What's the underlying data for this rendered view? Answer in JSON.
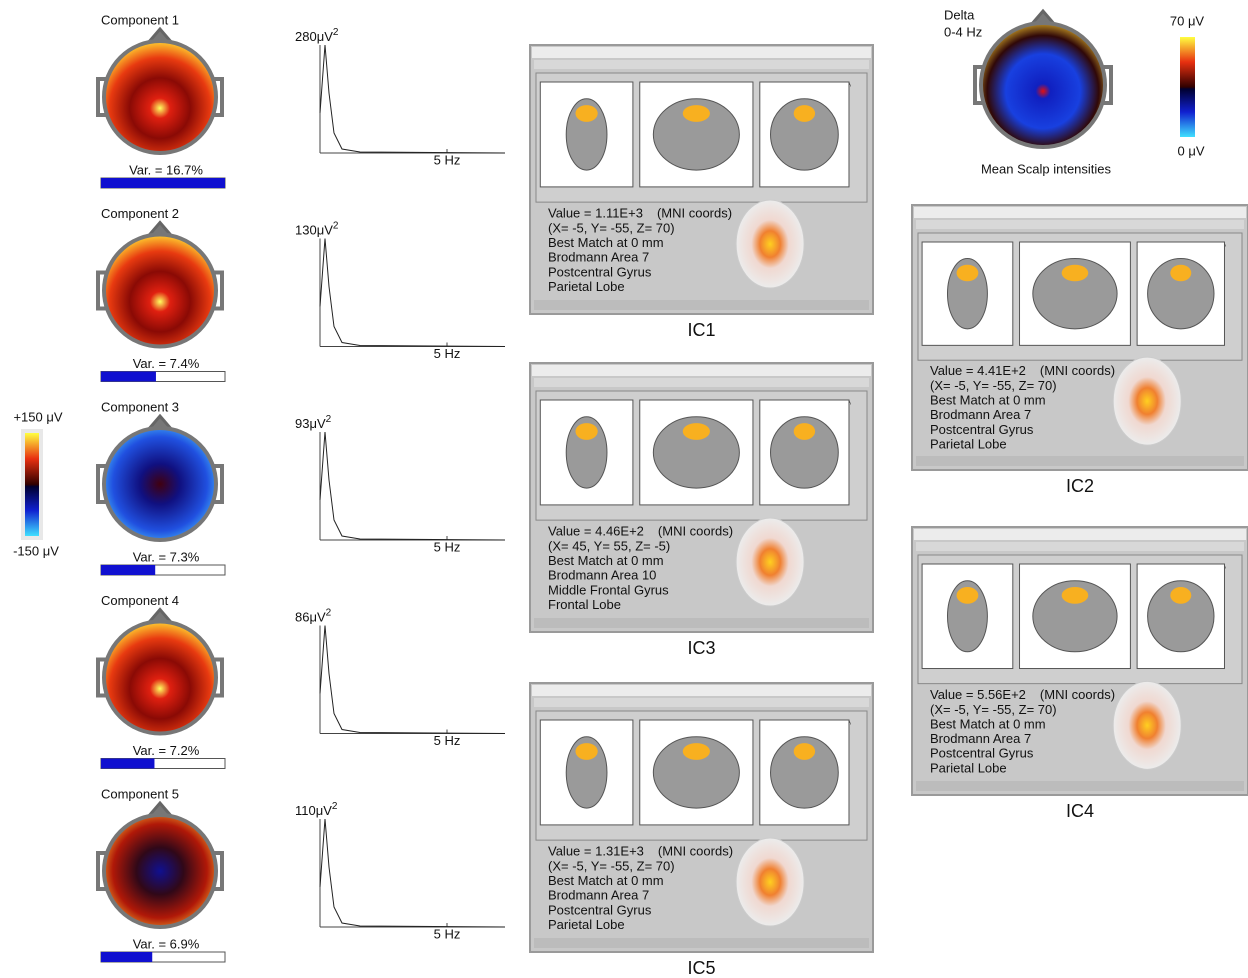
{
  "components": [
    {
      "title": "Component 1",
      "variance": 16.7,
      "variance_label": "Var. = 16.7%",
      "peak": 280,
      "freq_label": "5 Hz"
    },
    {
      "title": "Component 2",
      "variance": 7.4,
      "variance_label": "Var. = 7.4%",
      "peak": 130,
      "freq_label": "5 Hz"
    },
    {
      "title": "Component 3",
      "variance": 7.3,
      "variance_label": "Var. = 7.3%",
      "peak": 93,
      "freq_label": "5 Hz"
    },
    {
      "title": "Component 4",
      "variance": 7.2,
      "variance_label": "Var. = 7.2%",
      "peak": 86,
      "freq_label": "5 Hz"
    },
    {
      "title": "Component 5",
      "variance": 6.9,
      "variance_label": "Var. = 6.9%",
      "peak": 110,
      "freq_label": "5 Hz"
    }
  ],
  "power_unit": {
    "base": "μV",
    "exp": "2"
  },
  "component_scale": {
    "max": "+150 μV",
    "min": "-150 μV"
  },
  "mean_map": {
    "band": "Delta",
    "range": "0-4 Hz",
    "caption": "Mean Scalp intensities",
    "max": "70 μV",
    "min": "0 μV"
  },
  "sources": [
    {
      "caption": "IC1",
      "window": "sLORETA",
      "value": "Value = 1.11E+3",
      "coords_note": "(MNI coords)",
      "coords": "(X= -5, Y= -55, Z= 70)",
      "match": "Best Match at 0 mm",
      "area": "Brodmann Area 7",
      "gyrus": "Postcentral Gyrus",
      "lobe": "Parietal Lobe"
    },
    {
      "caption": "IC2",
      "window": "sLORETA",
      "value": "Value = 4.41E+2",
      "coords_note": "(MNI coords)",
      "coords": "(X= -5, Y= -55, Z= 70)",
      "match": "Best Match at 0 mm",
      "area": "Brodmann Area 7",
      "gyrus": "Postcentral Gyrus",
      "lobe": "Parietal Lobe"
    },
    {
      "caption": "IC3",
      "window": "sLORETA",
      "value": "Value = 4.46E+2",
      "coords_note": "(MNI coords)",
      "coords": "(X= 45, Y= 55, Z= -5)",
      "match": "Best Match at 0 mm",
      "area": "Brodmann Area 10",
      "gyrus": "Middle Frontal Gyrus",
      "lobe": "Frontal Lobe"
    },
    {
      "caption": "IC4",
      "window": "sLORETA",
      "value": "Value = 5.56E+2",
      "coords_note": "(MNI coords)",
      "coords": "(X= -5, Y= -55, Z= 70)",
      "match": "Best Match at 0 mm",
      "area": "Brodmann Area 7",
      "gyrus": "Postcentral Gyrus",
      "lobe": "Parietal Lobe"
    },
    {
      "caption": "IC5",
      "window": "sLORETA",
      "value": "Value = 1.31E+3",
      "coords_note": "(MNI coords)",
      "coords": "(X= -5, Y= -55, Z= 70)",
      "match": "Best Match at 0 mm",
      "area": "Brodmann Area 7",
      "gyrus": "Postcentral Gyrus",
      "lobe": "Parietal Lobe"
    }
  ]
}
